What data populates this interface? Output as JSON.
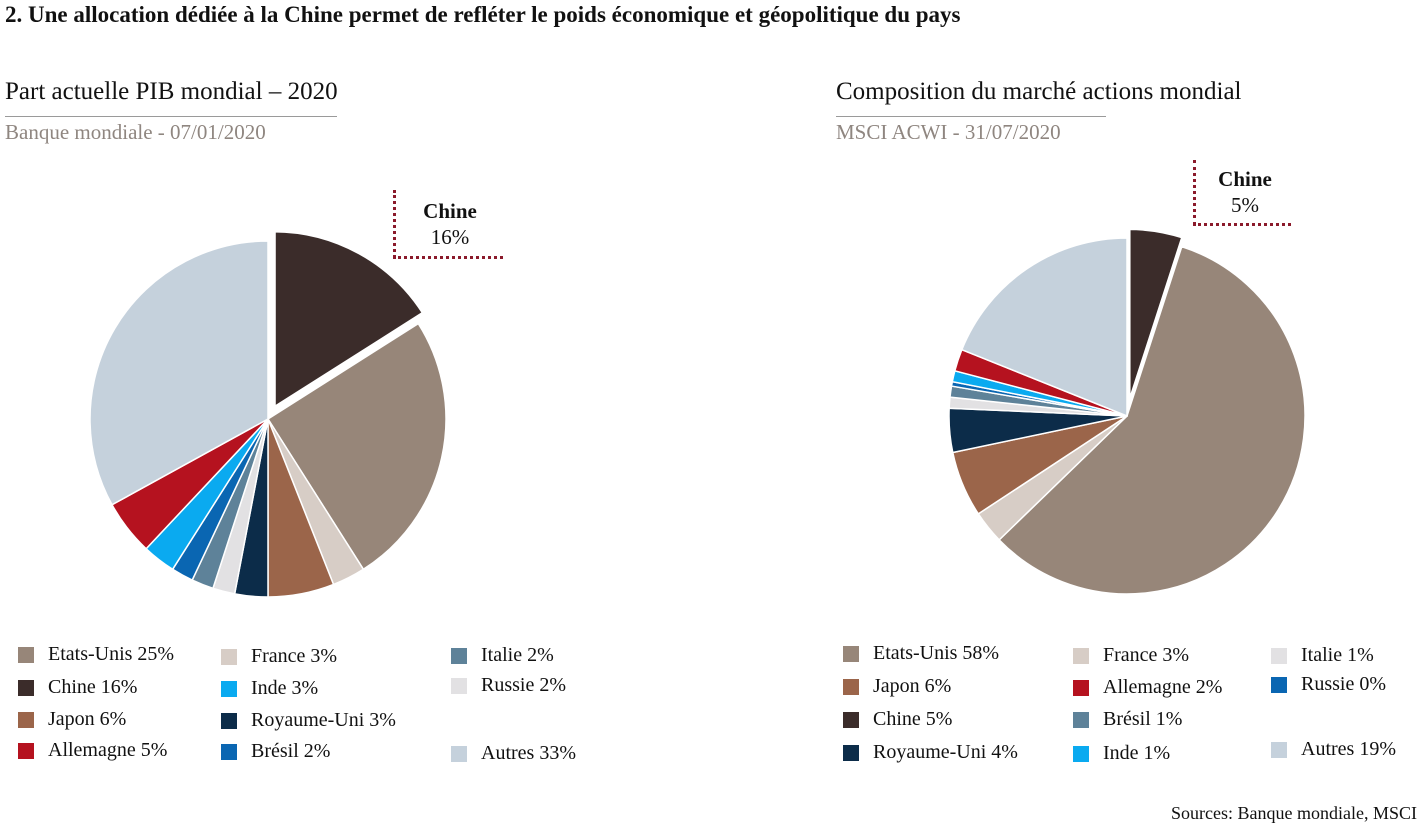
{
  "title": "2. Une allocation dédiée à la Chine permet de refléter le poids économique et géopolitique du pays",
  "source": "Sources: Banque mondiale, MSCI",
  "chart_data": [
    {
      "type": "pie",
      "title": "Part actuelle PIB mondial  – 2020",
      "subtitle": "Banque mondiale  - 07/01/2020",
      "callout": {
        "name": "Chine",
        "value": "16%"
      },
      "slices": [
        {
          "name": "Chine",
          "value": 16,
          "color": "#3b2c2a",
          "exploded": true
        },
        {
          "name": "Etats-Unis",
          "value": 25,
          "color": "#978679"
        },
        {
          "name": "France",
          "value": 3,
          "color": "#d7cdc6"
        },
        {
          "name": "Japon",
          "value": 6,
          "color": "#9b654a"
        },
        {
          "name": "Royaume-Uni",
          "value": 3,
          "color": "#0c2c49"
        },
        {
          "name": "Russie",
          "value": 2,
          "color": "#e2e1e3"
        },
        {
          "name": "Italie",
          "value": 2,
          "color": "#5e8299"
        },
        {
          "name": "Brésil",
          "value": 2,
          "color": "#0a66b2"
        },
        {
          "name": "Inde",
          "value": 3,
          "color": "#0aaaf0"
        },
        {
          "name": "Allemagne",
          "value": 5,
          "color": "#b5121f"
        },
        {
          "name": "Autres",
          "value": 33,
          "color": "#c5d1dc"
        }
      ],
      "legend": [
        {
          "label": "Etats-Unis 25%",
          "color": "#978679"
        },
        {
          "label": "Chine 16%",
          "color": "#3b2c2a"
        },
        {
          "label": "Japon 6%",
          "color": "#9b654a"
        },
        {
          "label": "Allemagne 5%",
          "color": "#b5121f"
        },
        {
          "label": "France 3%",
          "color": "#d7cdc6"
        },
        {
          "label": "Inde 3%",
          "color": "#0aaaf0"
        },
        {
          "label": "Royaume-Uni 3%",
          "color": "#0c2c49"
        },
        {
          "label": "Brésil 2%",
          "color": "#0a66b2"
        },
        {
          "label": "Italie 2%",
          "color": "#5e8299"
        },
        {
          "label": "Russie 2%",
          "color": "#e2e1e3"
        },
        {
          "label": "Autres 33%",
          "color": "#c5d1dc"
        }
      ]
    },
    {
      "type": "pie",
      "title": "Composition du marché actions mondial",
      "subtitle": "MSCI ACWI - 31/07/2020",
      "callout": {
        "name": "Chine",
        "value": "5%"
      },
      "slices": [
        {
          "name": "Chine",
          "value": 5,
          "color": "#3b2c2a",
          "exploded": true
        },
        {
          "name": "Etats-Unis",
          "value": 58,
          "color": "#978679"
        },
        {
          "name": "France",
          "value": 3,
          "color": "#d7cdc6"
        },
        {
          "name": "Japon",
          "value": 6,
          "color": "#9b654a"
        },
        {
          "name": "Royaume-Uni",
          "value": 4,
          "color": "#0c2c49"
        },
        {
          "name": "Italie",
          "value": 1,
          "color": "#e2e1e3"
        },
        {
          "name": "Brésil",
          "value": 1,
          "color": "#5e8299"
        },
        {
          "name": "Russie",
          "value": 0.4,
          "color": "#0a66b2"
        },
        {
          "name": "Inde",
          "value": 1,
          "color": "#0aaaf0"
        },
        {
          "name": "Allemagne",
          "value": 2,
          "color": "#b5121f"
        },
        {
          "name": "Autres",
          "value": 19,
          "color": "#c5d1dc"
        }
      ],
      "legend": [
        {
          "label": "Etats-Unis  58%",
          "color": "#978679"
        },
        {
          "label": "Japon 6%",
          "color": "#9b654a"
        },
        {
          "label": "Chine 5%",
          "color": "#3b2c2a"
        },
        {
          "label": "Royaume-Uni 4%",
          "color": "#0c2c49"
        },
        {
          "label": "France 3%",
          "color": "#d7cdc6"
        },
        {
          "label": "Allemagne 2%",
          "color": "#b5121f"
        },
        {
          "label": "Brésil 1%",
          "color": "#5e8299"
        },
        {
          "label": "Inde 1%",
          "color": "#0aaaf0"
        },
        {
          "label": "Italie 1%",
          "color": "#e2e1e3"
        },
        {
          "label": "Russie 0%",
          "color": "#0a66b2"
        },
        {
          "label": "Autres 19%",
          "color": "#c5d1dc"
        }
      ]
    }
  ]
}
